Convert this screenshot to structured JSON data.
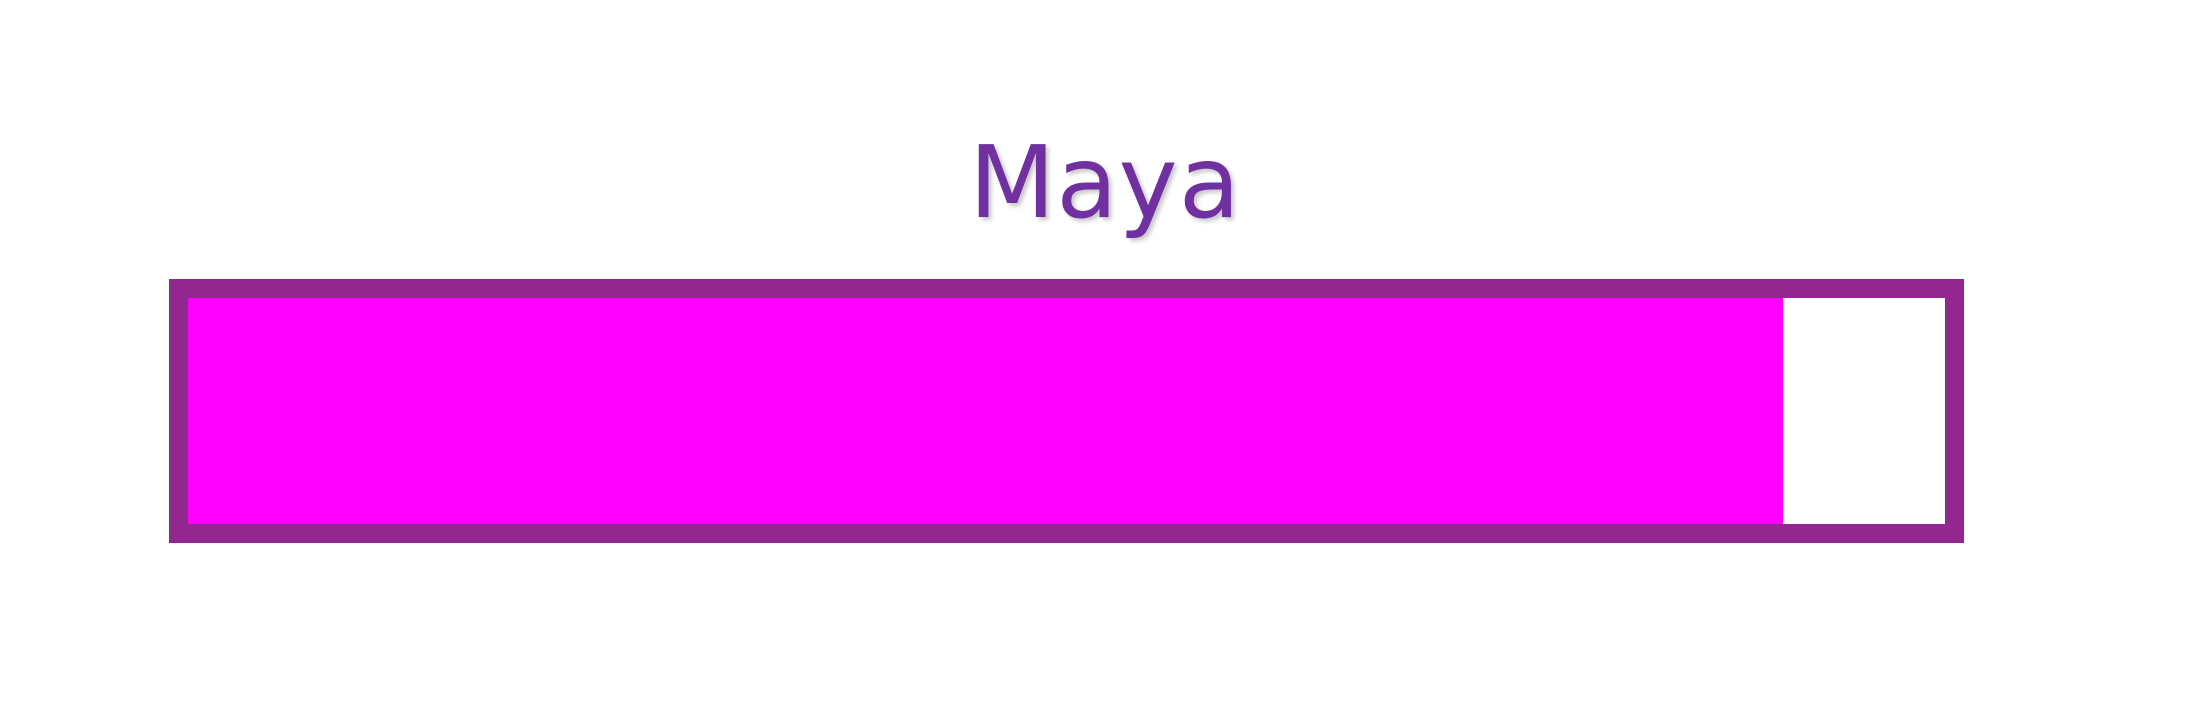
{
  "skill": {
    "label": "Maya",
    "progress": 0.9078
  },
  "colors": {
    "title": "#7030a0",
    "frame": "#92278f",
    "fill": "#ff00ff",
    "track": "#ffffff"
  }
}
